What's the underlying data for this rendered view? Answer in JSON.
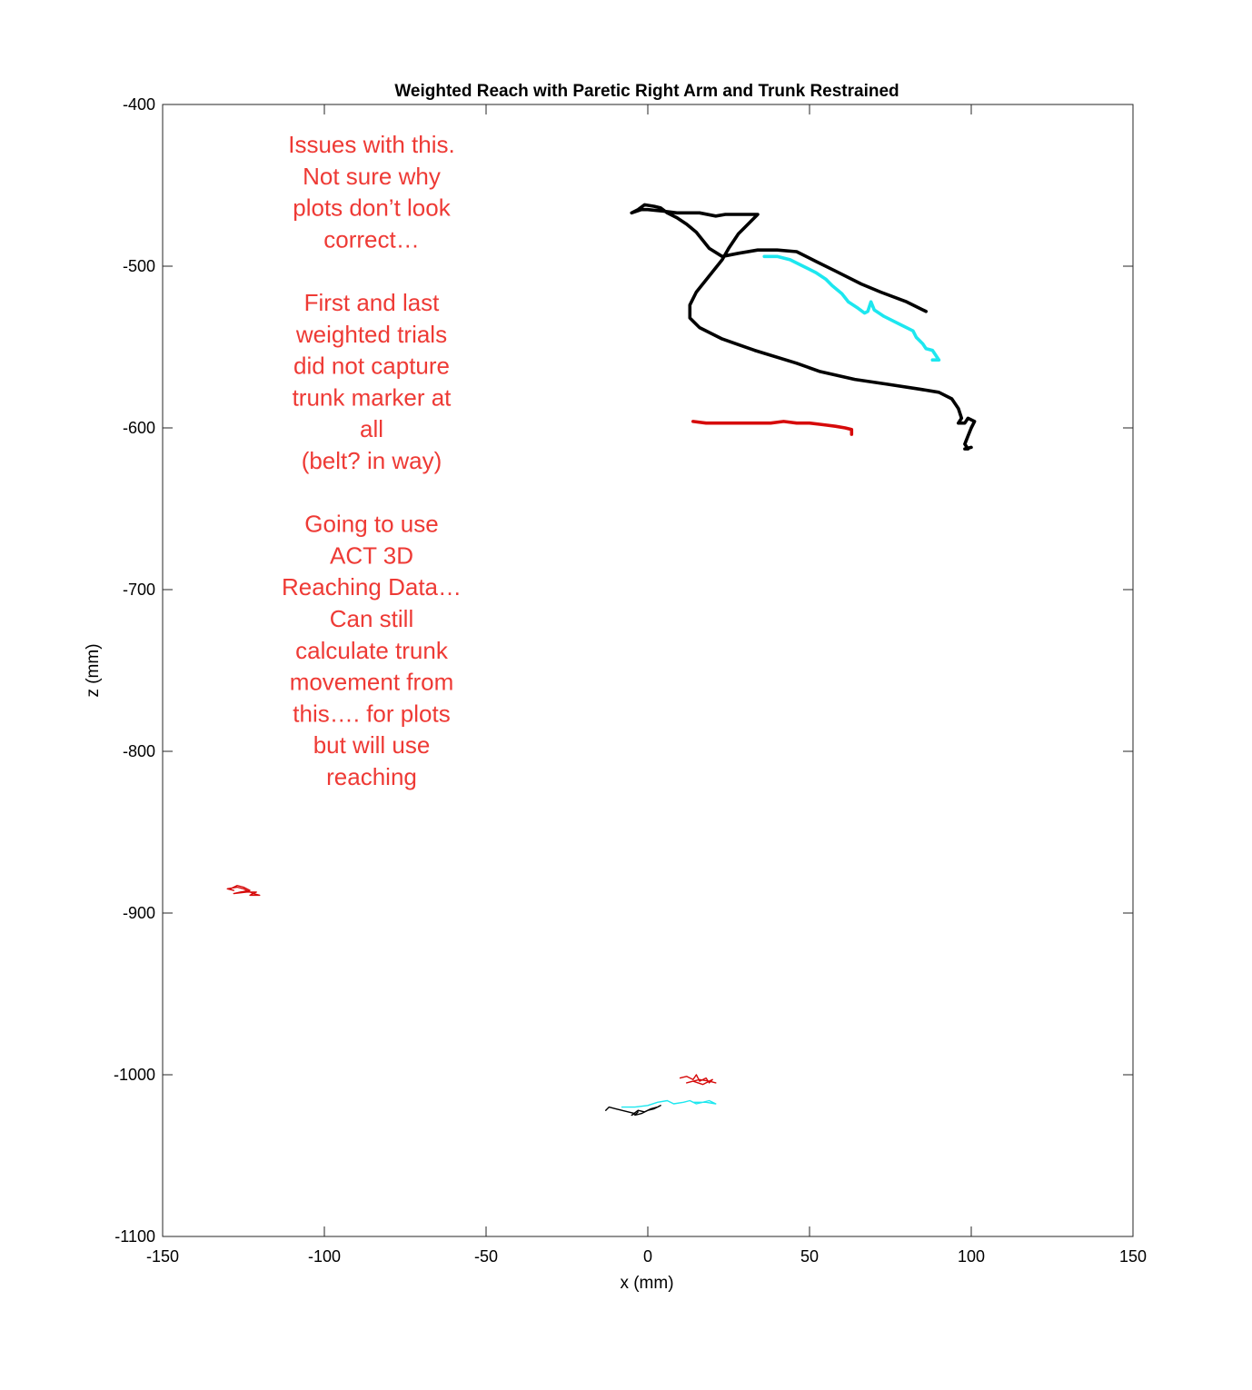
{
  "chart_data": {
    "type": "line",
    "title": "Weighted Reach with Paretic Right Arm and Trunk Restrained",
    "xlabel": "x (mm)",
    "ylabel": "z (mm)",
    "xlim": [
      -150,
      150
    ],
    "ylim": [
      -1100,
      -400
    ],
    "xticks": [
      -150,
      -100,
      -50,
      0,
      50,
      100,
      150
    ],
    "yticks": [
      -400,
      -500,
      -600,
      -700,
      -800,
      -900,
      -1000,
      -1100
    ],
    "xtick_labels": [
      "-150",
      "-100",
      "-50",
      "0",
      "50",
      "100",
      "150"
    ],
    "ytick_labels": [
      "-400",
      "-500",
      "-600",
      "-700",
      "-800",
      "-900",
      "-1000",
      "-1100"
    ],
    "grid": false,
    "series": [
      {
        "color": "#000000",
        "style": "thick",
        "points": [
          [
            86,
            -528
          ],
          [
            80,
            -522
          ],
          [
            72,
            -516
          ],
          [
            66,
            -511
          ],
          [
            58,
            -503
          ],
          [
            52,
            -497
          ],
          [
            46,
            -491
          ],
          [
            40,
            -490
          ],
          [
            34,
            -490
          ],
          [
            28,
            -492
          ],
          [
            23,
            -494
          ],
          [
            19,
            -489
          ],
          [
            17,
            -484
          ],
          [
            15,
            -479
          ],
          [
            12,
            -474
          ],
          [
            9,
            -470
          ],
          [
            6,
            -467
          ],
          [
            4,
            -464
          ],
          [
            2,
            -463
          ],
          [
            -1,
            -462
          ],
          [
            -3,
            -465
          ],
          [
            -5,
            -467
          ],
          [
            -2,
            -465
          ],
          [
            0,
            -465
          ],
          [
            5,
            -466
          ],
          [
            9,
            -467
          ],
          [
            16,
            -467
          ],
          [
            21,
            -469
          ],
          [
            24,
            -468
          ],
          [
            34,
            -468
          ],
          [
            28,
            -480
          ],
          [
            25,
            -489
          ],
          [
            23,
            -496
          ],
          [
            19,
            -506
          ],
          [
            15,
            -516
          ],
          [
            13,
            -524
          ],
          [
            13,
            -532
          ],
          [
            16,
            -538
          ],
          [
            23,
            -545
          ],
          [
            33,
            -552
          ],
          [
            46,
            -560
          ],
          [
            53,
            -565
          ],
          [
            64,
            -570
          ],
          [
            74,
            -573
          ],
          [
            84,
            -576
          ],
          [
            90,
            -578
          ],
          [
            94,
            -582
          ],
          [
            96,
            -588
          ],
          [
            97,
            -594
          ],
          [
            96,
            -597
          ],
          [
            98,
            -597
          ],
          [
            99,
            -594
          ],
          [
            101,
            -596
          ],
          [
            100,
            -600
          ],
          [
            99,
            -605
          ],
          [
            98,
            -610
          ],
          [
            99,
            -613
          ],
          [
            98,
            -613
          ],
          [
            100,
            -612
          ]
        ]
      },
      {
        "color": "#1de7ef",
        "style": "thick",
        "points": [
          [
            36,
            -494
          ],
          [
            40,
            -494
          ],
          [
            44,
            -496
          ],
          [
            48,
            -500
          ],
          [
            52,
            -504
          ],
          [
            55,
            -508
          ],
          [
            57,
            -512
          ],
          [
            60,
            -517
          ],
          [
            62,
            -522
          ],
          [
            65,
            -526
          ],
          [
            67,
            -529
          ],
          [
            68,
            -528
          ],
          [
            69,
            -522
          ],
          [
            70,
            -527
          ],
          [
            73,
            -531
          ],
          [
            78,
            -536
          ],
          [
            82,
            -540
          ],
          [
            83,
            -544
          ],
          [
            85,
            -548
          ],
          [
            86,
            -551
          ],
          [
            88,
            -552
          ],
          [
            89,
            -555
          ],
          [
            90,
            -558
          ],
          [
            88,
            -558
          ]
        ]
      },
      {
        "color": "#d60a0a",
        "style": "thick",
        "points": [
          [
            14,
            -596
          ],
          [
            18,
            -597
          ],
          [
            24,
            -597
          ],
          [
            31,
            -597
          ],
          [
            38,
            -597
          ],
          [
            42,
            -596
          ],
          [
            46,
            -597
          ],
          [
            50,
            -597
          ],
          [
            54,
            -598
          ],
          [
            58,
            -599
          ],
          [
            61,
            -600
          ],
          [
            63,
            -601
          ],
          [
            63,
            -604
          ]
        ]
      },
      {
        "color": "#d60a0a",
        "style": "thin",
        "points": [
          [
            -129,
            -885
          ],
          [
            -127,
            -883
          ],
          [
            -125,
            -884
          ],
          [
            -123,
            -886
          ],
          [
            -126,
            -887
          ],
          [
            -128,
            -888
          ],
          [
            -124,
            -887
          ],
          [
            -121,
            -887
          ],
          [
            -123,
            -889
          ],
          [
            -120,
            -889
          ],
          [
            -122,
            -888
          ],
          [
            -125,
            -885
          ],
          [
            -127,
            -884
          ],
          [
            -130,
            -885
          ],
          [
            -128,
            -886
          ]
        ]
      },
      {
        "color": "#d60a0a",
        "style": "thin",
        "points": [
          [
            10,
            -1002
          ],
          [
            12,
            -1001
          ],
          [
            14,
            -1003
          ],
          [
            15,
            -1000
          ],
          [
            16,
            -1004
          ],
          [
            18,
            -1002
          ],
          [
            19,
            -1005
          ],
          [
            20,
            -1003
          ],
          [
            17,
            -1006
          ],
          [
            14,
            -1004
          ],
          [
            12,
            -1005
          ],
          [
            16,
            -1003
          ],
          [
            19,
            -1004
          ],
          [
            21,
            -1005
          ]
        ]
      },
      {
        "color": "#1de7ef",
        "style": "thin",
        "points": [
          [
            -8,
            -1020
          ],
          [
            -4,
            -1020
          ],
          [
            0,
            -1019
          ],
          [
            3,
            -1017
          ],
          [
            6,
            -1016
          ],
          [
            8,
            -1018
          ],
          [
            11,
            -1017
          ],
          [
            13,
            -1016
          ],
          [
            15,
            -1018
          ],
          [
            17,
            -1017
          ],
          [
            19,
            -1016
          ],
          [
            21,
            -1018
          ],
          [
            18,
            -1017
          ],
          [
            14,
            -1017
          ]
        ]
      },
      {
        "color": "#000000",
        "style": "thin",
        "points": [
          [
            -13,
            -1022
          ],
          [
            -12,
            -1020
          ],
          [
            -10,
            -1021
          ],
          [
            -8,
            -1022
          ],
          [
            -6,
            -1023
          ],
          [
            -4,
            -1024
          ],
          [
            -5,
            -1025
          ],
          [
            -3,
            -1022
          ],
          [
            -1,
            -1023
          ],
          [
            1,
            -1021
          ],
          [
            3,
            -1020
          ],
          [
            4,
            -1019
          ],
          [
            2,
            -1021
          ],
          [
            0,
            -1022
          ],
          [
            -2,
            -1024
          ],
          [
            -4,
            -1025
          ],
          [
            -3,
            -1023
          ]
        ]
      }
    ],
    "annotation": {
      "color": "#ee3a35",
      "lines": [
        "Issues with this.",
        "Not sure why",
        "plots don’t look",
        "correct…",
        "",
        "First and last",
        "weighted trials",
        "did not capture",
        "trunk marker at",
        "all",
        "(belt? in way)",
        "",
        "Going to use",
        "ACT 3D",
        "Reaching Data…",
        "Can still",
        "calculate trunk",
        "movement from",
        "this…. for plots",
        "but will use",
        "reaching"
      ]
    }
  }
}
